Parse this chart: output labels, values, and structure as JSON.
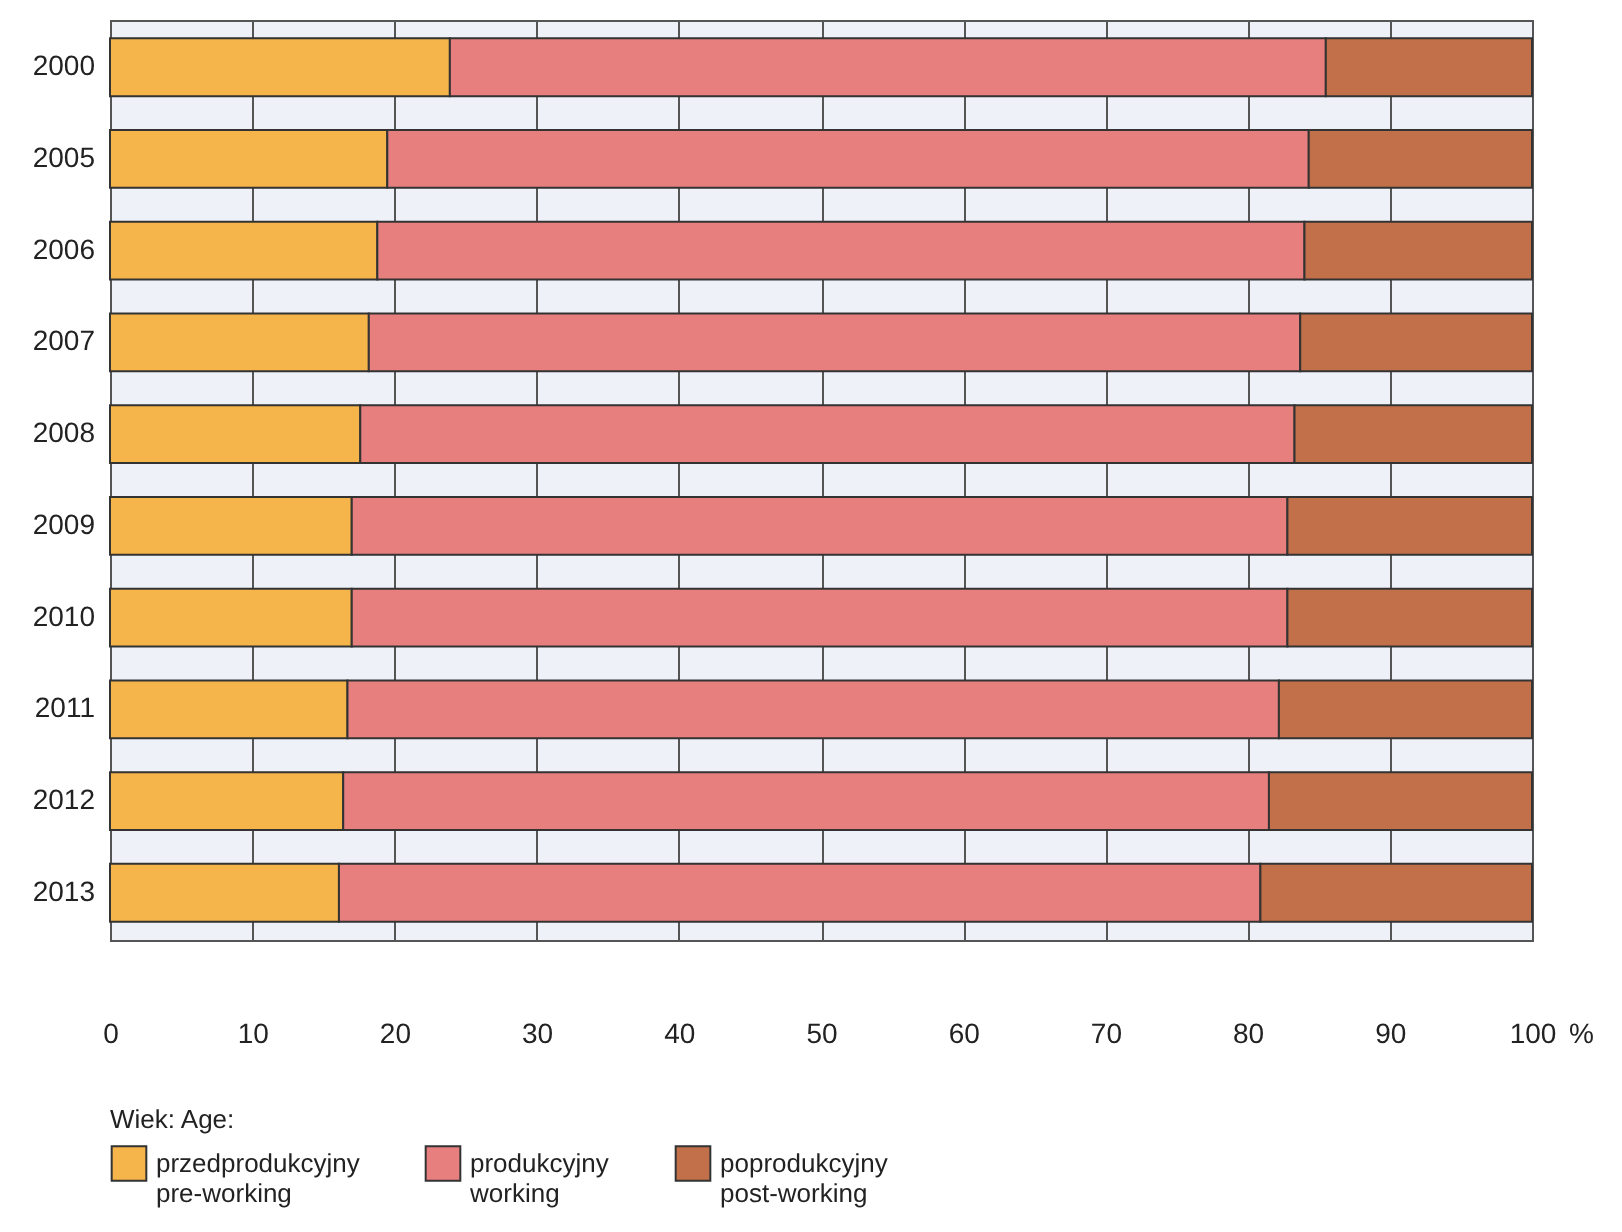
{
  "chart_data": {
    "type": "bar",
    "orientation": "horizontal",
    "stacked": true,
    "categories": [
      "2000",
      "2005",
      "2006",
      "2007",
      "2008",
      "2009",
      "2010",
      "2011",
      "2012",
      "2013"
    ],
    "series": [
      {
        "name": "przedprodukcyjny\npre-working",
        "color": "#f5b54a",
        "values": [
          23.9,
          19.5,
          18.8,
          18.2,
          17.6,
          17.0,
          17.0,
          16.7,
          16.4,
          16.1
        ]
      },
      {
        "name": "produkcyjny\nworking",
        "color": "#e87f7f",
        "values": [
          61.6,
          64.8,
          65.2,
          65.5,
          65.7,
          65.8,
          65.8,
          65.5,
          65.1,
          64.8
        ]
      },
      {
        "name": "poprodukcyjny\npost-working",
        "color": "#c2704a",
        "values": [
          14.5,
          15.7,
          16.0,
          16.3,
          16.7,
          17.2,
          17.2,
          17.8,
          18.5,
          19.1
        ]
      }
    ],
    "xlim": [
      0,
      100
    ],
    "xticks": [
      0,
      10,
      20,
      30,
      40,
      50,
      60,
      70,
      80,
      90,
      100
    ],
    "xlabel": "%",
    "legend_title": "Wiek:   Age:",
    "legend": "bottom",
    "grid": "x"
  }
}
